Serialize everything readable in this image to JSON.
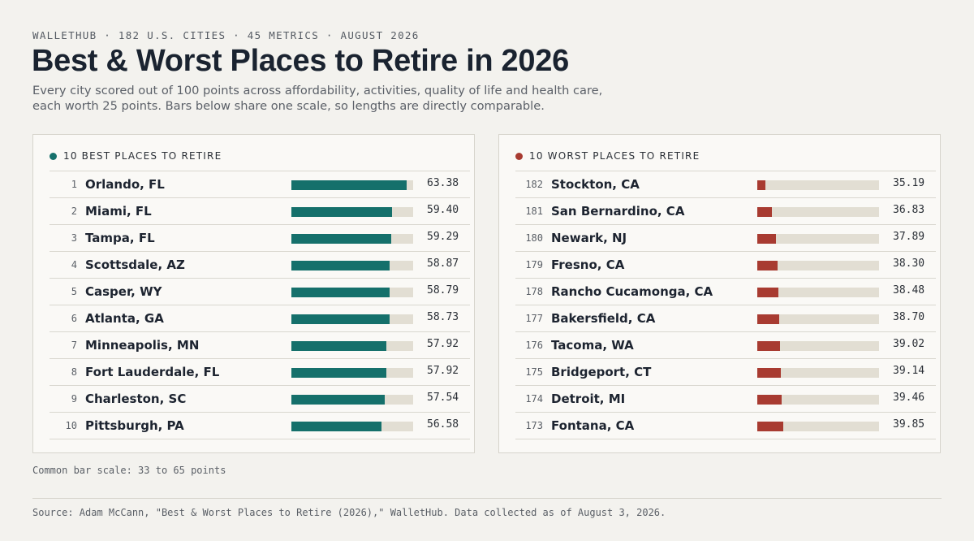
{
  "eyebrow": "WALLETHUB · 182 U.S. CITIES · 45 METRICS · AUGUST 2026",
  "title": "Best & Worst Places to Retire in 2026",
  "subtitle_line1": "Every city scored out of 100 points across affordability, activities, quality of life and health care,",
  "subtitle_line2": "each worth 25 points. Bars below share one scale, so lengths are directly comparable.",
  "scale_note": "Common bar scale: 33 to 65 points",
  "source": "Source: Adam McCann, \"Best & Worst Places to Retire (2026),\" WalletHub. Data collected as of August 3, 2026.",
  "colors": {
    "best": "#15706b",
    "worst": "#a83b31",
    "track": "#e2ded3"
  },
  "chart_data": [
    {
      "type": "bar",
      "title": "10 BEST PLACES TO RETIRE",
      "scale": [
        33,
        65
      ],
      "rows": [
        {
          "rank": "1",
          "city": "Orlando, FL",
          "value": 63.38,
          "label": "63.38"
        },
        {
          "rank": "2",
          "city": "Miami, FL",
          "value": 59.4,
          "label": "59.40"
        },
        {
          "rank": "3",
          "city": "Tampa, FL",
          "value": 59.29,
          "label": "59.29"
        },
        {
          "rank": "4",
          "city": "Scottsdale, AZ",
          "value": 58.87,
          "label": "58.87"
        },
        {
          "rank": "5",
          "city": "Casper, WY",
          "value": 58.79,
          "label": "58.79"
        },
        {
          "rank": "6",
          "city": "Atlanta, GA",
          "value": 58.73,
          "label": "58.73"
        },
        {
          "rank": "7",
          "city": "Minneapolis, MN",
          "value": 57.92,
          "label": "57.92"
        },
        {
          "rank": "8",
          "city": "Fort Lauderdale, FL",
          "value": 57.92,
          "label": "57.92"
        },
        {
          "rank": "9",
          "city": "Charleston, SC",
          "value": 57.54,
          "label": "57.54"
        },
        {
          "rank": "10",
          "city": "Pittsburgh, PA",
          "value": 56.58,
          "label": "56.58"
        }
      ]
    },
    {
      "type": "bar",
      "title": "10 WORST PLACES TO RETIRE",
      "scale": [
        33,
        65
      ],
      "rows": [
        {
          "rank": "182",
          "city": "Stockton, CA",
          "value": 35.19,
          "label": "35.19"
        },
        {
          "rank": "181",
          "city": "San Bernardino, CA",
          "value": 36.83,
          "label": "36.83"
        },
        {
          "rank": "180",
          "city": "Newark, NJ",
          "value": 37.89,
          "label": "37.89"
        },
        {
          "rank": "179",
          "city": "Fresno, CA",
          "value": 38.3,
          "label": "38.30"
        },
        {
          "rank": "178",
          "city": "Rancho Cucamonga, CA",
          "value": 38.48,
          "label": "38.48"
        },
        {
          "rank": "177",
          "city": "Bakersfield, CA",
          "value": 38.7,
          "label": "38.70"
        },
        {
          "rank": "176",
          "city": "Tacoma, WA",
          "value": 39.02,
          "label": "39.02"
        },
        {
          "rank": "175",
          "city": "Bridgeport, CT",
          "value": 39.14,
          "label": "39.14"
        },
        {
          "rank": "174",
          "city": "Detroit, MI",
          "value": 39.46,
          "label": "39.46"
        },
        {
          "rank": "173",
          "city": "Fontana, CA",
          "value": 39.85,
          "label": "39.85"
        }
      ]
    }
  ]
}
